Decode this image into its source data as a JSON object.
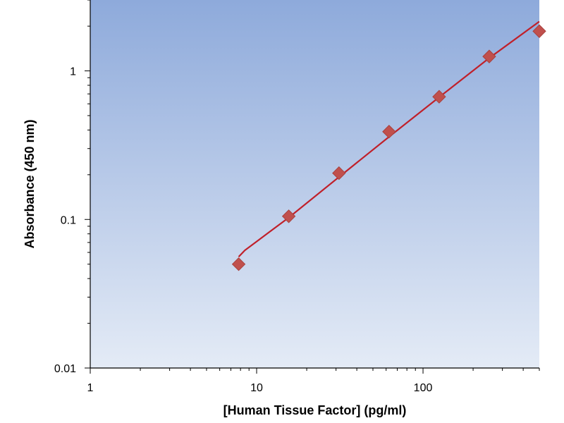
{
  "chart_data": {
    "type": "scatter",
    "title": "",
    "xlabel": "[Human Tissue Factor] (pg/ml)",
    "ylabel": "Absorbance (450 nm)",
    "x_scale": "log",
    "y_scale": "log",
    "xlim": [
      1,
      500
    ],
    "ylim": [
      0.01,
      3
    ],
    "x_ticks": [
      {
        "value": 1,
        "label": "1"
      },
      {
        "value": 10,
        "label": "10"
      },
      {
        "value": 100,
        "label": "100"
      }
    ],
    "y_ticks": [
      {
        "value": 0.01,
        "label": "0.01"
      },
      {
        "value": 0.1,
        "label": "0.1"
      },
      {
        "value": 1,
        "label": "1"
      }
    ],
    "grid": false,
    "legend": "none",
    "series": [
      {
        "x": [
          7.8,
          15.6,
          31.25,
          62.5,
          125,
          250,
          500
        ],
        "y": [
          0.05,
          0.105,
          0.205,
          0.39,
          0.67,
          1.25,
          1.85
        ],
        "marker": "diamond",
        "color": "#c0504d"
      }
    ],
    "fit_curve": {
      "x": [
        7.8,
        8.5,
        10,
        15.6,
        31.25,
        62.5,
        125,
        250,
        500
      ],
      "y": [
        0.056,
        0.062,
        0.071,
        0.103,
        0.193,
        0.36,
        0.665,
        1.22,
        2.15
      ],
      "color": "#c0202a"
    },
    "plot_background": {
      "top": "#8eaadb",
      "bottom": "#e4ebf6"
    }
  }
}
